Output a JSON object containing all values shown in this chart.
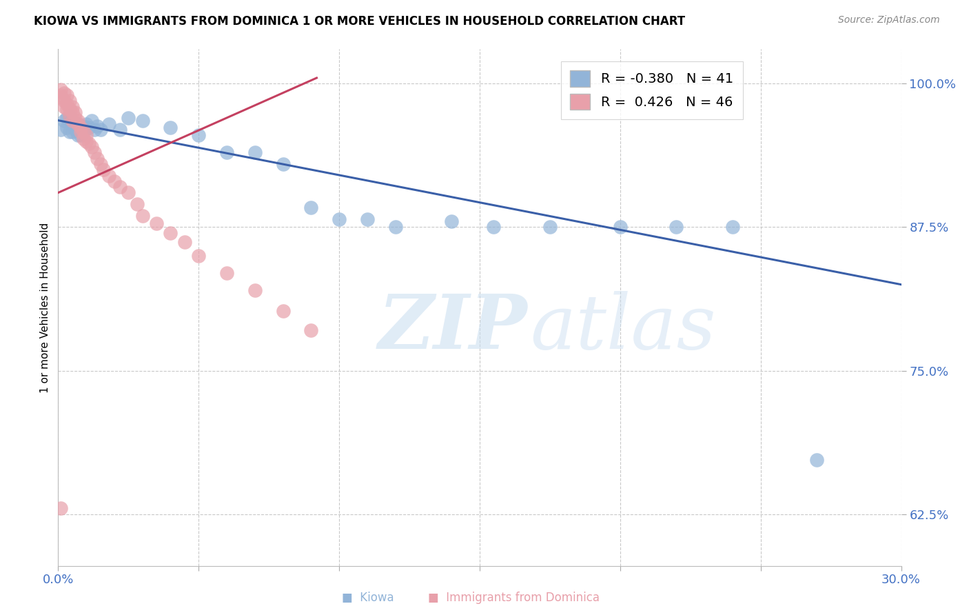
{
  "title": "KIOWA VS IMMIGRANTS FROM DOMINICA 1 OR MORE VEHICLES IN HOUSEHOLD CORRELATION CHART",
  "source": "Source: ZipAtlas.com",
  "ylabel": "1 or more Vehicles in Household",
  "xlabel": "",
  "xlim": [
    0.0,
    0.3
  ],
  "ylim": [
    0.58,
    1.03
  ],
  "xticks": [
    0.0,
    0.05,
    0.1,
    0.15,
    0.2,
    0.25,
    0.3
  ],
  "xticklabels": [
    "0.0%",
    "",
    "",
    "",
    "",
    "",
    "30.0%"
  ],
  "yticks": [
    0.625,
    0.75,
    0.875,
    1.0
  ],
  "yticklabels": [
    "62.5%",
    "75.0%",
    "87.5%",
    "100.0%"
  ],
  "kiowa_color": "#92b4d8",
  "dominica_color": "#e8a0aa",
  "kiowa_line_color": "#3a5fa8",
  "dominica_line_color": "#c44060",
  "kiowa_R": -0.38,
  "kiowa_N": 41,
  "dominica_R": 0.426,
  "dominica_N": 46,
  "kiowa_x": [
    0.001,
    0.002,
    0.003,
    0.003,
    0.004,
    0.004,
    0.005,
    0.005,
    0.006,
    0.007,
    0.007,
    0.008,
    0.008,
    0.009,
    0.009,
    0.01,
    0.011,
    0.012,
    0.013,
    0.014,
    0.015,
    0.018,
    0.022,
    0.025,
    0.03,
    0.04,
    0.05,
    0.06,
    0.07,
    0.08,
    0.09,
    0.1,
    0.11,
    0.12,
    0.14,
    0.155,
    0.175,
    0.2,
    0.22,
    0.24,
    0.27
  ],
  "kiowa_y": [
    0.96,
    0.968,
    0.962,
    0.97,
    0.958,
    0.972,
    0.958,
    0.965,
    0.96,
    0.955,
    0.965,
    0.96,
    0.955,
    0.958,
    0.963,
    0.965,
    0.962,
    0.968,
    0.96,
    0.963,
    0.96,
    0.965,
    0.96,
    0.97,
    0.968,
    0.962,
    0.955,
    0.94,
    0.94,
    0.93,
    0.892,
    0.882,
    0.882,
    0.875,
    0.88,
    0.875,
    0.875,
    0.875,
    0.875,
    0.875,
    0.672
  ],
  "dominica_x": [
    0.001,
    0.001,
    0.001,
    0.002,
    0.002,
    0.002,
    0.003,
    0.003,
    0.003,
    0.004,
    0.004,
    0.004,
    0.005,
    0.005,
    0.005,
    0.006,
    0.006,
    0.007,
    0.007,
    0.008,
    0.008,
    0.009,
    0.009,
    0.01,
    0.01,
    0.011,
    0.012,
    0.013,
    0.014,
    0.015,
    0.016,
    0.018,
    0.02,
    0.022,
    0.025,
    0.028,
    0.03,
    0.035,
    0.04,
    0.045,
    0.05,
    0.06,
    0.07,
    0.08,
    0.09,
    0.001
  ],
  "dominica_y": [
    0.995,
    0.99,
    0.988,
    0.992,
    0.985,
    0.98,
    0.99,
    0.982,
    0.978,
    0.985,
    0.978,
    0.972,
    0.98,
    0.975,
    0.968,
    0.975,
    0.97,
    0.965,
    0.968,
    0.962,
    0.958,
    0.958,
    0.952,
    0.955,
    0.95,
    0.948,
    0.945,
    0.94,
    0.935,
    0.93,
    0.925,
    0.92,
    0.915,
    0.91,
    0.905,
    0.895,
    0.885,
    0.878,
    0.87,
    0.862,
    0.85,
    0.835,
    0.82,
    0.802,
    0.785,
    0.63
  ]
}
